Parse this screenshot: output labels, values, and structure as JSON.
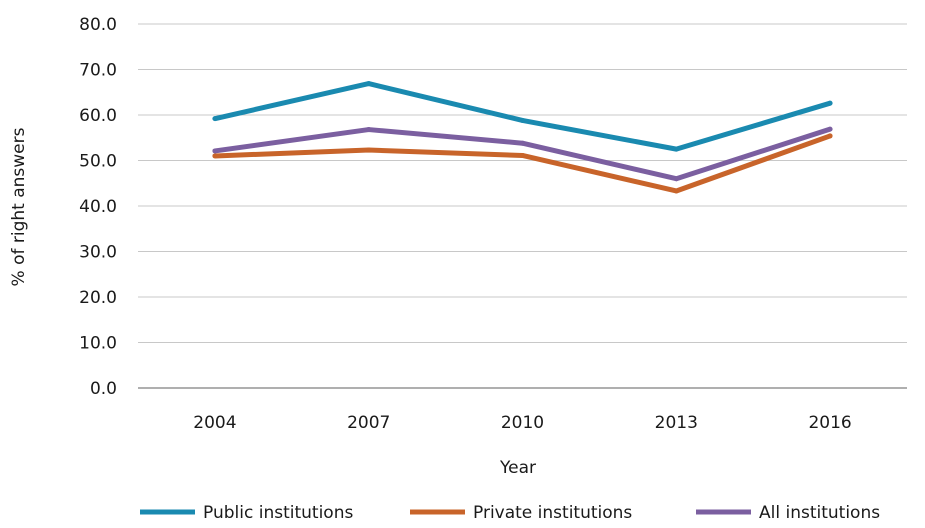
{
  "chart_data": {
    "type": "line",
    "categories": [
      "2004",
      "2007",
      "2010",
      "2013",
      "2016"
    ],
    "y_ticks": [
      "0.0",
      "10.0",
      "20.0",
      "30.0",
      "40.0",
      "50.0",
      "60.0",
      "70.0",
      "80.0"
    ],
    "ylim": [
      0,
      80
    ],
    "xlabel": "Year",
    "ylabel": "% of right answers",
    "grid": "horizontal",
    "legend": "bottom",
    "series": [
      {
        "name": "Public institutions",
        "values": [
          59.2,
          66.9,
          58.8,
          52.5,
          62.6
        ],
        "color": "#1a8ab0"
      },
      {
        "name": "Private institutions",
        "values": [
          51.0,
          52.3,
          51.1,
          43.3,
          55.4
        ],
        "color": "#c8642a"
      },
      {
        "name": "All institutions",
        "values": [
          52.1,
          56.8,
          53.8,
          46.0,
          56.9
        ],
        "color": "#7b5fa0"
      }
    ]
  }
}
